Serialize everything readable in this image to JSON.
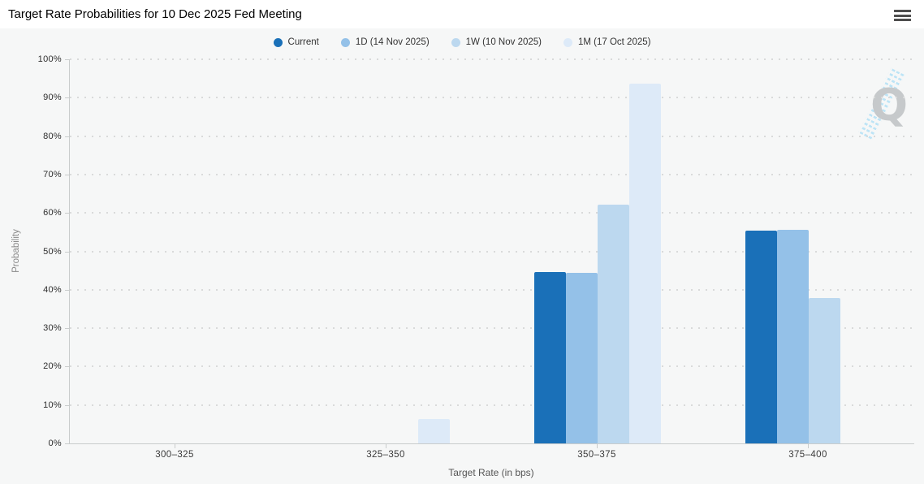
{
  "header": {
    "menu_icon": "hamburger-menu"
  },
  "watermark": {
    "letter": "Q"
  },
  "chart_data": {
    "type": "bar",
    "title": "Target Rate Probabilities for 10 Dec 2025 Fed Meeting",
    "categories": [
      "300–325",
      "325–350",
      "350–375",
      "375–400"
    ],
    "series": [
      {
        "name": "Current",
        "color": "#1a70b8",
        "values": [
          0,
          0,
          44.7,
          55.3
        ]
      },
      {
        "name": "1D (14 Nov 2025)",
        "color": "#94c1e8",
        "values": [
          0,
          0,
          44.3,
          55.7
        ]
      },
      {
        "name": "1W (10 Nov 2025)",
        "color": "#bcd8ef",
        "values": [
          0,
          0,
          62.2,
          37.8
        ]
      },
      {
        "name": "1M (17 Oct 2025)",
        "color": "#ddeaf8",
        "values": [
          0,
          6.3,
          93.7,
          0
        ]
      }
    ],
    "xlabel": "Target Rate (in bps)",
    "ylabel": "Probability",
    "ylim": [
      0,
      100
    ],
    "ytick_step": 10,
    "ytick_suffix": "%",
    "yticks": [
      "0%",
      "10%",
      "20%",
      "30%",
      "40%",
      "50%",
      "60%",
      "70%",
      "80%",
      "90%",
      "100%"
    ],
    "grid": "dotted horizontal",
    "legend_position": "top center"
  }
}
